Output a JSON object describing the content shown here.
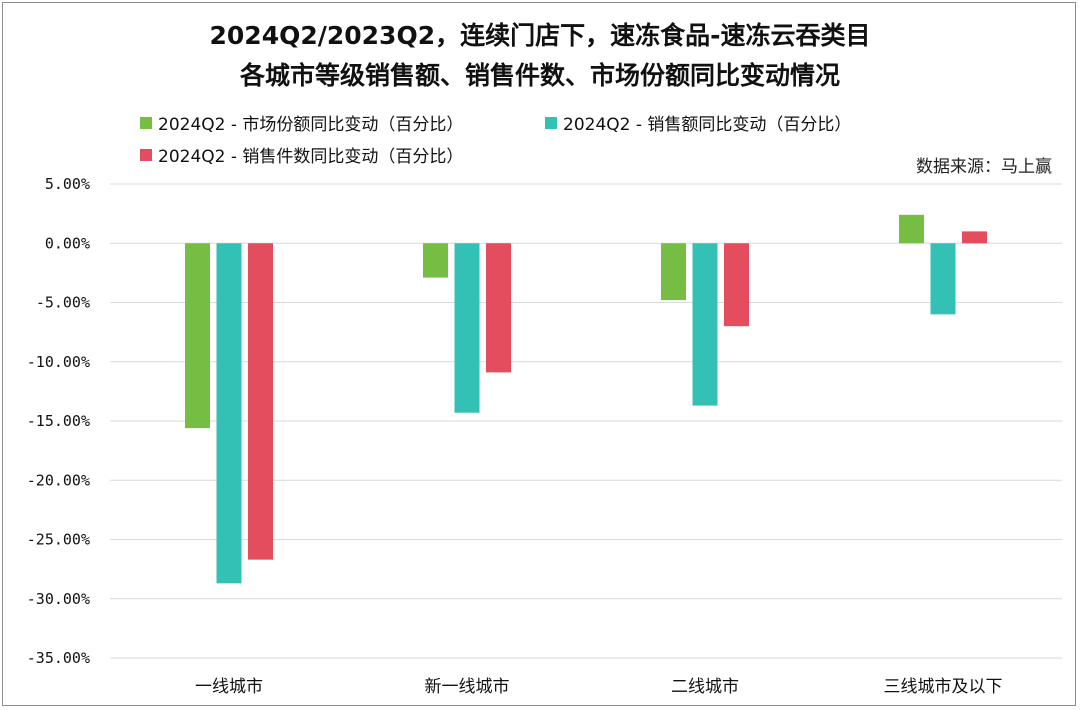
{
  "title_line1": "2024Q2/2023Q2，连续门店下，速冻食品-速冻云吞类目",
  "title_line2": "各城市等级销售额、销售件数、市场份额同比变动情况",
  "source": "数据来源：马上赢",
  "colors": {
    "market_share": "#76bd44",
    "sales_amount": "#33c1b5",
    "sales_units": "#e44d5e",
    "grid": "#d9d9d9"
  },
  "chart_data": {
    "type": "bar",
    "categories": [
      "一线城市",
      "新一线城市",
      "二线城市",
      "三线城市及以下"
    ],
    "series": [
      {
        "name": "2024Q2 - 市场份额同比变动（百分比）",
        "values": [
          -15.6,
          -2.9,
          -4.8,
          2.4
        ]
      },
      {
        "name": "2024Q2 - 销售额同比变动（百分比）",
        "values": [
          -28.7,
          -14.3,
          -13.7,
          -6.0
        ]
      },
      {
        "name": "2024Q2 - 销售件数同比变动（百分比）",
        "values": [
          -26.7,
          -10.9,
          -7.0,
          1.0
        ]
      }
    ],
    "ylim": [
      -35,
      5
    ],
    "yticks": [
      "5.00%",
      "0.00%",
      "-5.00%",
      "-10.00%",
      "-15.00%",
      "-20.00%",
      "-25.00%",
      "-30.00%",
      "-35.00%"
    ],
    "ytick_values": [
      5,
      0,
      -5,
      -10,
      -15,
      -20,
      -25,
      -30,
      -35
    ],
    "grid": true,
    "legend_position": "top"
  }
}
